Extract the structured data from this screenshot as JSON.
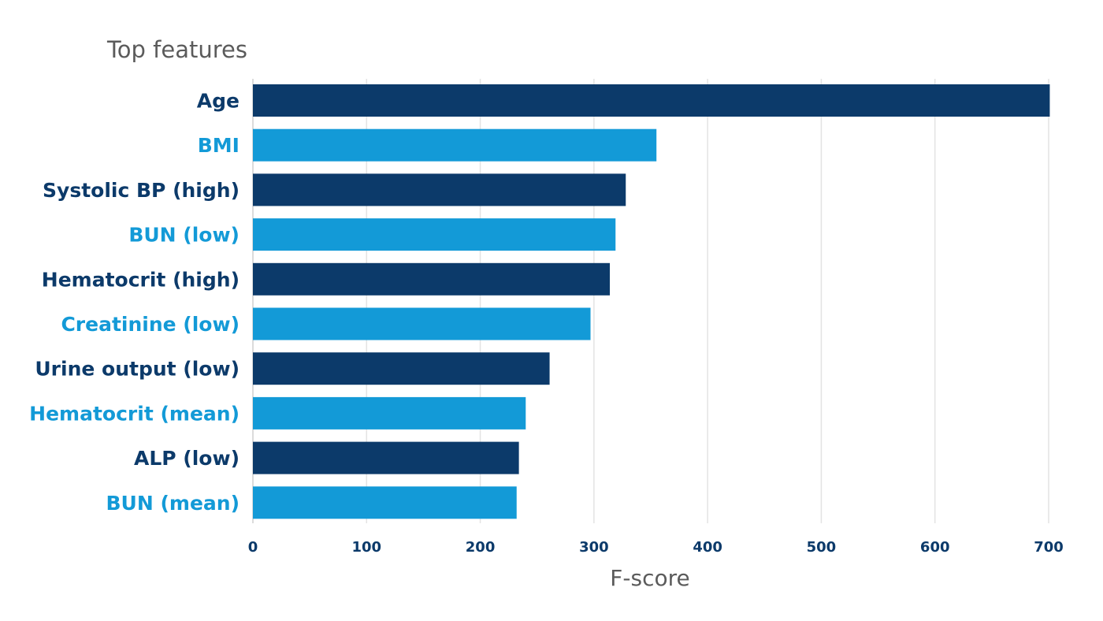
{
  "chart_data": {
    "type": "bar",
    "orientation": "horizontal",
    "title": "Top features",
    "xlabel": "F-score",
    "ylabel": "",
    "xlim": [
      0,
      700
    ],
    "xticks": [
      0,
      100,
      200,
      300,
      400,
      500,
      600,
      700
    ],
    "grid": "vertical",
    "categories": [
      "Age",
      "BMI",
      "Systolic BP (high)",
      "BUN (low)",
      "Hematocrit (high)",
      "Creatinine (low)",
      "Urine output (low)",
      "Hematocrit (mean)",
      "ALP (low)",
      "BUN (mean)"
    ],
    "values": [
      701,
      355,
      328,
      319,
      314,
      297,
      261,
      240,
      234,
      232
    ],
    "colors": {
      "dark": "#0c3a6a",
      "light": "#139ad7",
      "grid": "#e3e3e3"
    },
    "bar_color_pattern": [
      "dark",
      "light"
    ]
  }
}
